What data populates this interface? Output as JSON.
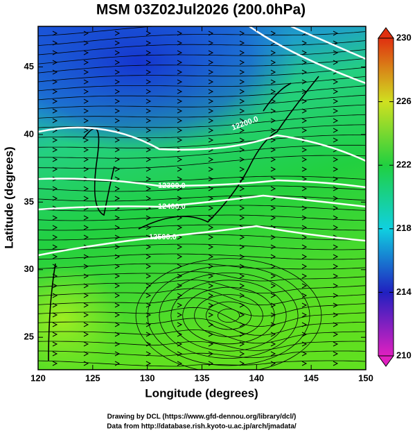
{
  "chart_data": {
    "type": "vector-field",
    "title": "MSM 03Z02Jul2026 (200.0hPa)",
    "xlabel": "Longitude (degrees)",
    "ylabel": "Latitude  (degrees)",
    "xlim": [
      120,
      150
    ],
    "xticks": [
      120,
      125,
      130,
      135,
      140,
      145,
      150
    ],
    "ylim": [
      22.6,
      48
    ],
    "yticks": [
      25,
      30,
      35,
      40,
      45
    ],
    "colorbar": {
      "lim": [
        210,
        230
      ],
      "ticks": [
        210,
        214,
        218,
        222,
        226,
        230
      ]
    },
    "contour_labels": [
      "12200.0",
      "12300.0",
      "12400.0",
      "12500.0"
    ]
  },
  "footer": [
    "Drawing by DCL (https://www.gfd-dennou.org/library/dcl/)",
    "Data from http://database.rish.kyoto-u.ac.jp/arch/jmadata/"
  ]
}
